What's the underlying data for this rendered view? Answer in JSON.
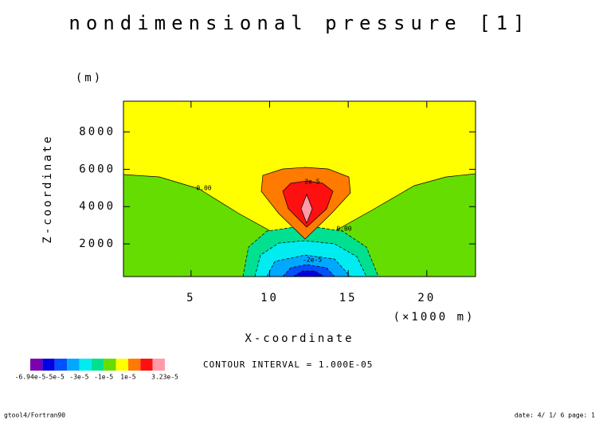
{
  "chart_data": {
    "type": "contour",
    "title": "nondimensional pressure [1]",
    "xlabel": "X-coordinate",
    "xunit": "(×1000 m)",
    "ylabel": "Z-coordinate",
    "yunit": "(m)",
    "xlim": [
      0.7,
      23.1
    ],
    "xticks": [
      5,
      10,
      15,
      20
    ],
    "ylim": [
      250,
      9650
    ],
    "yticks": [
      2000,
      4000,
      6000,
      8000
    ],
    "levels": [
      -6.94e-05,
      -6e-05,
      -5e-05,
      -4e-05,
      -3e-05,
      -2e-05,
      -1e-05,
      0,
      1e-05,
      2e-05,
      3e-05,
      3.23e-05
    ],
    "colors": [
      "#7a00b0",
      "#0000e0",
      "#0050ff",
      "#00a8ff",
      "#00ecf0",
      "#00e090",
      "#66dd00",
      "#ffff00",
      "#ff7a00",
      "#ff1010",
      "#ff9aa8"
    ],
    "colorbar_ticks": [
      {
        "value": -6.94e-05,
        "label": "-6.94e-5"
      },
      {
        "value": -5e-05,
        "label": "-5e-5"
      },
      {
        "value": -3e-05,
        "label": "-3e-5"
      },
      {
        "value": -1e-05,
        "label": "-1e-5"
      },
      {
        "value": 1e-05,
        "label": "1e-5"
      },
      {
        "value": 3.23e-05,
        "label": "3.23e-5"
      }
    ],
    "contour_labels": [
      "0.00",
      "2e-5",
      "-2e-5",
      "0.00"
    ],
    "contour_interval": "CONTOUR INTERVAL = 1.000E-05",
    "footer_left": "gtool4/Fortran90",
    "footer_right": "date: 4/ 1/ 6 page: 1"
  }
}
